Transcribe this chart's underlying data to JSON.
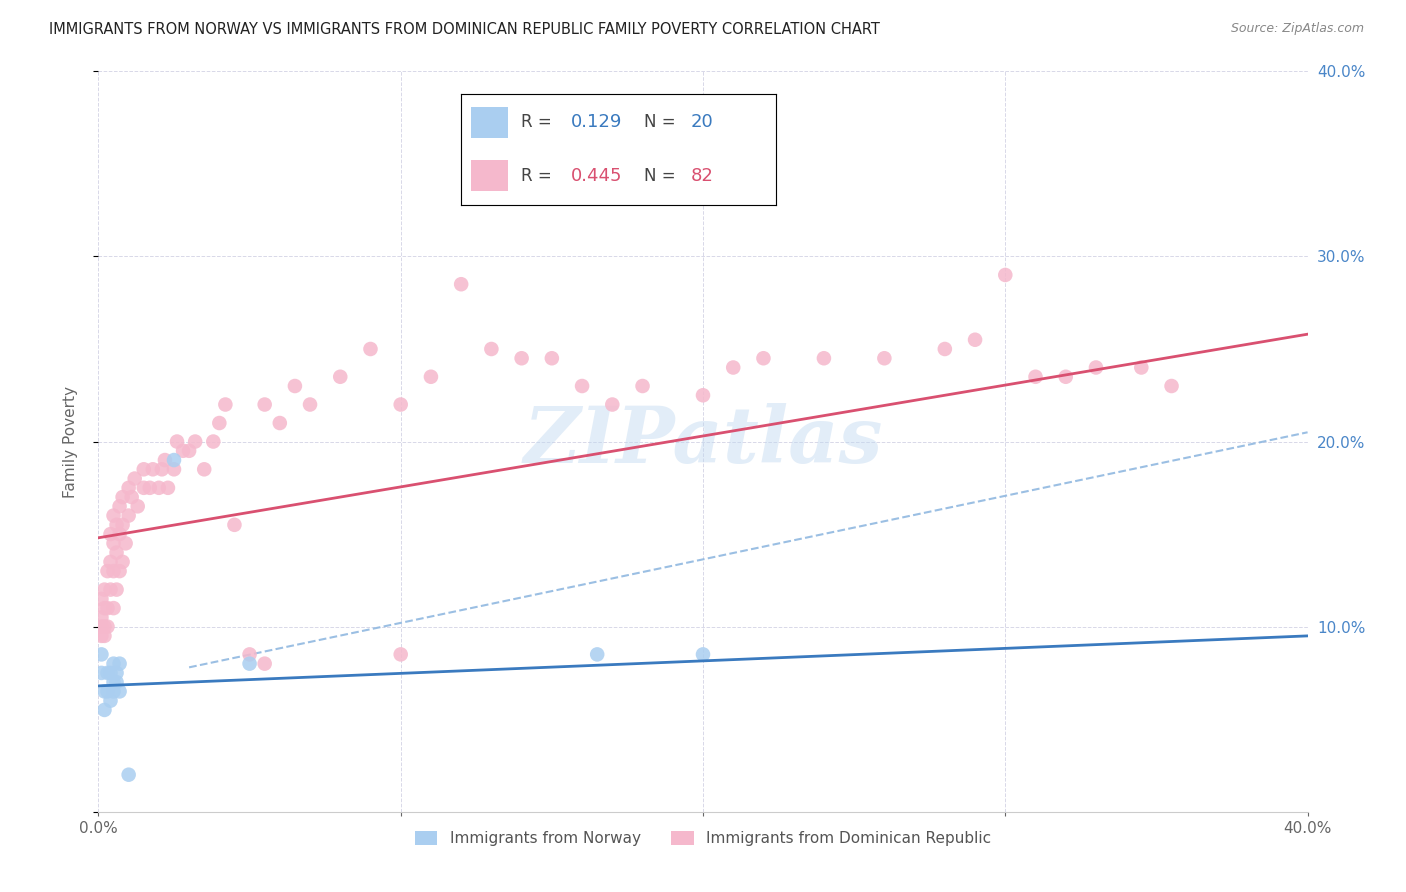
{
  "title": "IMMIGRANTS FROM NORWAY VS IMMIGRANTS FROM DOMINICAN REPUBLIC FAMILY POVERTY CORRELATION CHART",
  "source": "Source: ZipAtlas.com",
  "ylabel": "Family Poverty",
  "xlim": [
    0.0,
    0.4
  ],
  "ylim": [
    0.0,
    0.4
  ],
  "norway_R": "0.129",
  "norway_N": "20",
  "dominican_R": "0.445",
  "dominican_N": "82",
  "norway_color": "#aacef0",
  "dominican_color": "#f5b8cc",
  "norway_line_color": "#3a7abf",
  "dominican_line_color": "#d95070",
  "dashed_line_color": "#90b8e0",
  "legend_norway_label": "Immigrants from Norway",
  "legend_dominican_label": "Immigrants from Dominican Republic",
  "watermark": "ZIPatlas",
  "norway_x": [
    0.001,
    0.001,
    0.002,
    0.002,
    0.003,
    0.003,
    0.004,
    0.004,
    0.005,
    0.005,
    0.005,
    0.006,
    0.006,
    0.007,
    0.007,
    0.01,
    0.025,
    0.05,
    0.165,
    0.2
  ],
  "norway_y": [
    0.075,
    0.085,
    0.055,
    0.065,
    0.065,
    0.075,
    0.06,
    0.075,
    0.065,
    0.07,
    0.08,
    0.07,
    0.075,
    0.065,
    0.08,
    0.02,
    0.19,
    0.08,
    0.085,
    0.085
  ],
  "dominican_x": [
    0.001,
    0.001,
    0.001,
    0.001,
    0.002,
    0.002,
    0.002,
    0.002,
    0.003,
    0.003,
    0.003,
    0.004,
    0.004,
    0.004,
    0.005,
    0.005,
    0.005,
    0.005,
    0.006,
    0.006,
    0.006,
    0.007,
    0.007,
    0.007,
    0.008,
    0.008,
    0.008,
    0.009,
    0.01,
    0.01,
    0.011,
    0.012,
    0.013,
    0.015,
    0.015,
    0.017,
    0.018,
    0.02,
    0.021,
    0.022,
    0.023,
    0.025,
    0.026,
    0.028,
    0.03,
    0.032,
    0.035,
    0.038,
    0.04,
    0.042,
    0.045,
    0.05,
    0.055,
    0.06,
    0.065,
    0.07,
    0.08,
    0.09,
    0.1,
    0.11,
    0.12,
    0.13,
    0.14,
    0.15,
    0.16,
    0.17,
    0.18,
    0.2,
    0.21,
    0.22,
    0.24,
    0.26,
    0.28,
    0.29,
    0.3,
    0.31,
    0.32,
    0.33,
    0.345,
    0.355,
    0.055,
    0.1
  ],
  "dominican_y": [
    0.095,
    0.1,
    0.105,
    0.115,
    0.095,
    0.1,
    0.11,
    0.12,
    0.1,
    0.11,
    0.13,
    0.12,
    0.135,
    0.15,
    0.11,
    0.13,
    0.145,
    0.16,
    0.12,
    0.14,
    0.155,
    0.13,
    0.15,
    0.165,
    0.135,
    0.155,
    0.17,
    0.145,
    0.16,
    0.175,
    0.17,
    0.18,
    0.165,
    0.175,
    0.185,
    0.175,
    0.185,
    0.175,
    0.185,
    0.19,
    0.175,
    0.185,
    0.2,
    0.195,
    0.195,
    0.2,
    0.185,
    0.2,
    0.21,
    0.22,
    0.155,
    0.085,
    0.22,
    0.21,
    0.23,
    0.22,
    0.235,
    0.25,
    0.22,
    0.235,
    0.285,
    0.25,
    0.245,
    0.245,
    0.23,
    0.22,
    0.23,
    0.225,
    0.24,
    0.245,
    0.245,
    0.245,
    0.25,
    0.255,
    0.29,
    0.235,
    0.235,
    0.24,
    0.24,
    0.23,
    0.08,
    0.085
  ],
  "norway_line_x0": 0.0,
  "norway_line_x1": 0.4,
  "norway_line_y0": 0.068,
  "norway_line_y1": 0.095,
  "dominican_line_x0": 0.0,
  "dominican_line_x1": 0.4,
  "dominican_line_y0": 0.148,
  "dominican_line_y1": 0.258,
  "dashed_line_x0": 0.03,
  "dashed_line_x1": 0.4,
  "dashed_line_y0": 0.078,
  "dashed_line_y1": 0.205
}
